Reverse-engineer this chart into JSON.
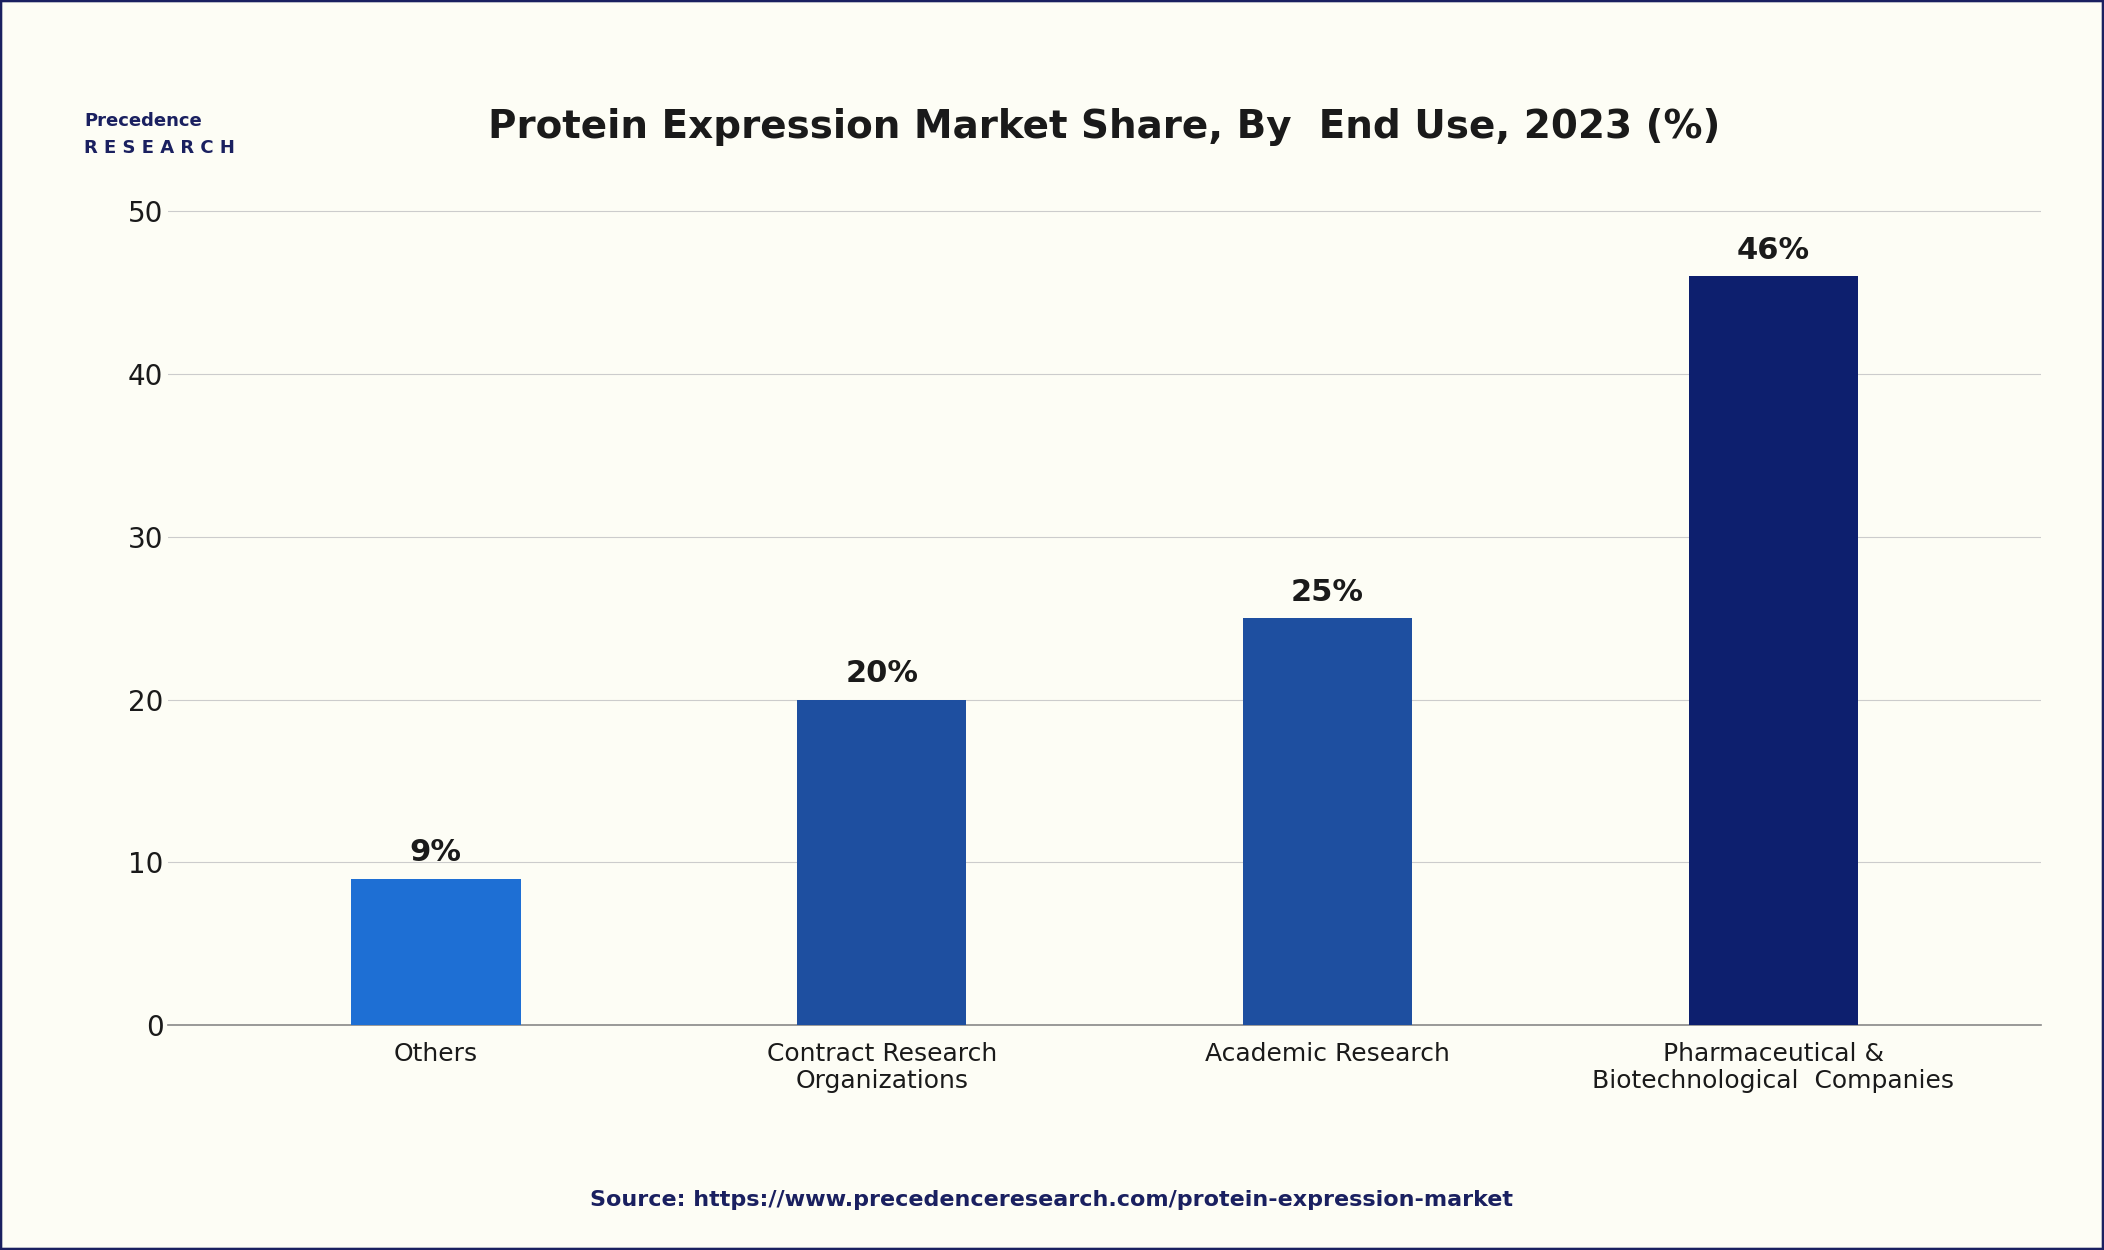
{
  "title": "Protein Expression Market Share, By  End Use, 2023 (%)",
  "categories": [
    "Others",
    "Contract Research\nOrganizations",
    "Academic Research",
    "Pharmaceutical &\nBiotechnological  Companies"
  ],
  "values": [
    9,
    20,
    25,
    46
  ],
  "labels": [
    "9%",
    "20%",
    "25%",
    "46%"
  ],
  "bar_colors": [
    "#1e6fd4",
    "#1e4fa0",
    "#1e4fa0",
    "#0d1f6e"
  ],
  "ylim": [
    0,
    53
  ],
  "yticks": [
    0,
    10,
    20,
    30,
    40,
    50
  ],
  "background_color": "#fdfdf5",
  "border_color": "#1a2060",
  "title_color": "#1a1a1a",
  "tick_color": "#1a1a1a",
  "source_text": "Source: https://www.precedenceresearch.com/protein-expression-market",
  "source_color": "#1a2060"
}
